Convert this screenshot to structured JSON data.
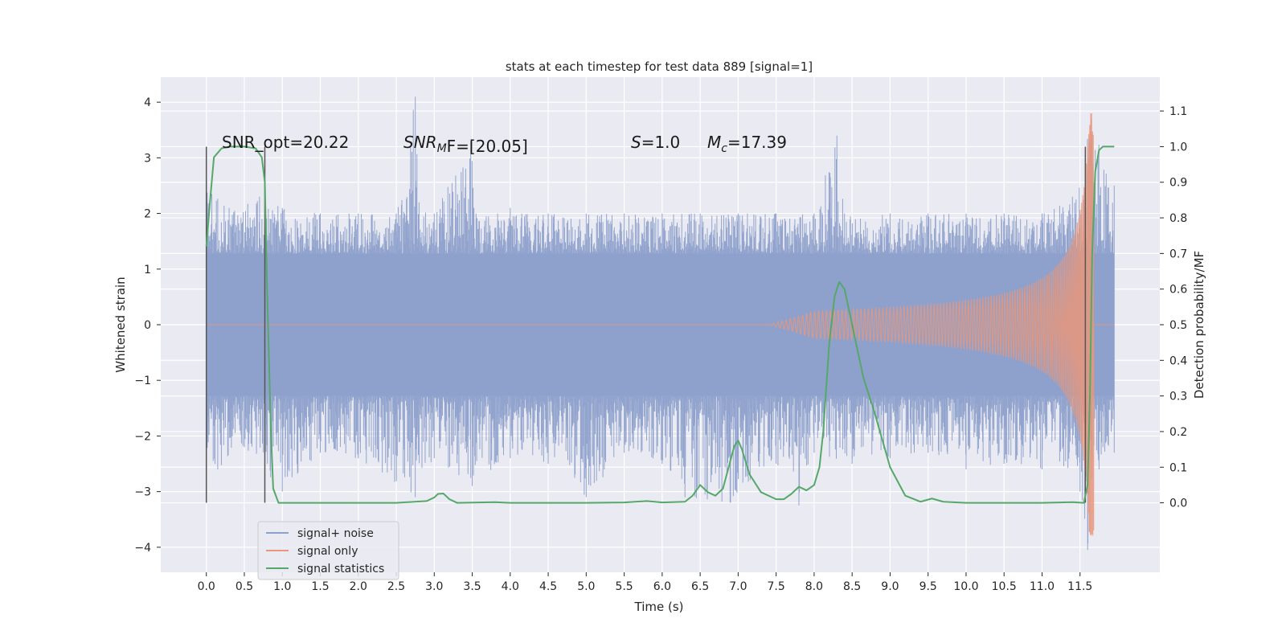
{
  "chart_data": {
    "type": "line",
    "title": "stats at each timestep for test data 889 [signal=1]",
    "xlabel": "Time (s)",
    "ylabel": "Whitened strain",
    "y2label": "Detection probability/MF",
    "xlim": [
      -0.6,
      12.55
    ],
    "ylim": [
      -4.45,
      4.45
    ],
    "y2lim": [
      -0.195,
      1.195
    ],
    "x_ticks": [
      "0.0",
      "0.5",
      "1.0",
      "1.5",
      "2.0",
      "2.5",
      "3.0",
      "3.5",
      "4.0",
      "4.5",
      "5.0",
      "5.5",
      "6.0",
      "6.5",
      "7.0",
      "7.5",
      "8.0",
      "8.5",
      "9.0",
      "9.5",
      "10.0",
      "10.5",
      "11.0",
      "11.5"
    ],
    "y_ticks": [
      "4",
      "3",
      "2",
      "1",
      "0",
      "−1",
      "−2",
      "−3",
      "−4"
    ],
    "y2_ticks": [
      "1.1",
      "1.0",
      "0.9",
      "0.8",
      "0.7",
      "0.6",
      "0.5",
      "0.4",
      "0.3",
      "0.2",
      "0.1",
      "0.0"
    ],
    "grid": true,
    "legend_position": "lower-left",
    "annotations": {
      "snr_opt": "SNR_opt=20.22",
      "snr_mf_base": "SNR",
      "snr_mf_sub": "M",
      "snr_mf_rest": "F=[20.05]",
      "s_sym": "S",
      "s_val": "=1.0",
      "mc_sym": "M",
      "mc_sub": "c",
      "mc_val": "=17.39"
    },
    "vertical_lines": [
      0.0,
      0.77,
      11.57
    ],
    "series": [
      {
        "name": "signal+ noise",
        "color": "#8da0cb",
        "envelope": [
          [
            0.0,
            2.5
          ],
          [
            0.3,
            2.1
          ],
          [
            0.7,
            2.3
          ],
          [
            1.0,
            2.1
          ],
          [
            1.5,
            2.0
          ],
          [
            2.0,
            2.0
          ],
          [
            2.5,
            2.0
          ],
          [
            2.75,
            4.1
          ],
          [
            2.8,
            2.2
          ],
          [
            3.0,
            2.0
          ],
          [
            3.48,
            3.3
          ],
          [
            3.55,
            2.0
          ],
          [
            4.0,
            2.1
          ],
          [
            4.5,
            2.0
          ],
          [
            5.0,
            2.0
          ],
          [
            5.5,
            2.0
          ],
          [
            6.0,
            2.0
          ],
          [
            6.5,
            2.0
          ],
          [
            7.0,
            2.0
          ],
          [
            7.5,
            2.0
          ],
          [
            8.0,
            2.0
          ],
          [
            8.3,
            3.4
          ],
          [
            8.4,
            2.0
          ],
          [
            9.0,
            2.0
          ],
          [
            9.5,
            2.0
          ],
          [
            10.0,
            2.0
          ],
          [
            10.5,
            2.0
          ],
          [
            11.0,
            2.0
          ],
          [
            11.4,
            2.3
          ],
          [
            11.65,
            3.7
          ],
          [
            11.95,
            2.5
          ]
        ],
        "lower_envelope": [
          [
            0.0,
            -2.3
          ],
          [
            0.15,
            -2.6
          ],
          [
            0.5,
            -2.2
          ],
          [
            1.0,
            -3.0
          ],
          [
            1.5,
            -2.3
          ],
          [
            2.0,
            -2.4
          ],
          [
            2.75,
            -3.1
          ],
          [
            3.0,
            -2.4
          ],
          [
            3.5,
            -2.9
          ],
          [
            4.0,
            -2.4
          ],
          [
            4.5,
            -2.5
          ],
          [
            5.0,
            -3.1
          ],
          [
            5.5,
            -2.3
          ],
          [
            6.0,
            -2.5
          ],
          [
            6.3,
            -3.1
          ],
          [
            6.9,
            -3.2
          ],
          [
            7.5,
            -2.5
          ],
          [
            7.8,
            -3.25
          ],
          [
            8.0,
            -2.3
          ],
          [
            8.5,
            -2.5
          ],
          [
            9.0,
            -2.4
          ],
          [
            9.5,
            -2.3
          ],
          [
            10.0,
            -2.6
          ],
          [
            10.5,
            -2.5
          ],
          [
            11.0,
            -2.6
          ],
          [
            11.5,
            -3.0
          ],
          [
            11.6,
            -4.05
          ],
          [
            11.75,
            -2.6
          ],
          [
            11.95,
            -2.3
          ]
        ],
        "core_band": 1.28
      },
      {
        "name": "signal only",
        "color": "#e9967a",
        "chirp_start": 7.4,
        "chirp_end": 11.68,
        "peak_amplitude": 3.8
      },
      {
        "name": "signal statistics",
        "color": "#55a868",
        "axis": "right",
        "points": [
          [
            0.0,
            0.72
          ],
          [
            0.05,
            0.85
          ],
          [
            0.1,
            0.97
          ],
          [
            0.2,
            0.995
          ],
          [
            0.3,
            1.0
          ],
          [
            0.5,
            1.0
          ],
          [
            0.65,
            0.995
          ],
          [
            0.73,
            0.97
          ],
          [
            0.77,
            0.9
          ],
          [
            0.8,
            0.6
          ],
          [
            0.85,
            0.2
          ],
          [
            0.88,
            0.04
          ],
          [
            0.95,
            0.0
          ],
          [
            1.5,
            0.0
          ],
          [
            2.5,
            0.0
          ],
          [
            2.9,
            0.005
          ],
          [
            3.0,
            0.015
          ],
          [
            3.05,
            0.025
          ],
          [
            3.12,
            0.026
          ],
          [
            3.2,
            0.01
          ],
          [
            3.3,
            0.0
          ],
          [
            3.8,
            0.002
          ],
          [
            4.0,
            0.0
          ],
          [
            5.0,
            0.0
          ],
          [
            5.5,
            0.001
          ],
          [
            5.8,
            0.005
          ],
          [
            6.0,
            0.001
          ],
          [
            6.3,
            0.003
          ],
          [
            6.4,
            0.02
          ],
          [
            6.5,
            0.05
          ],
          [
            6.6,
            0.03
          ],
          [
            6.7,
            0.02
          ],
          [
            6.8,
            0.04
          ],
          [
            6.9,
            0.12
          ],
          [
            6.95,
            0.16
          ],
          [
            7.0,
            0.175
          ],
          [
            7.05,
            0.15
          ],
          [
            7.15,
            0.08
          ],
          [
            7.3,
            0.03
          ],
          [
            7.5,
            0.01
          ],
          [
            7.6,
            0.01
          ],
          [
            7.7,
            0.025
          ],
          [
            7.8,
            0.045
          ],
          [
            7.9,
            0.035
          ],
          [
            8.0,
            0.05
          ],
          [
            8.07,
            0.1
          ],
          [
            8.12,
            0.2
          ],
          [
            8.2,
            0.45
          ],
          [
            8.27,
            0.58
          ],
          [
            8.33,
            0.62
          ],
          [
            8.4,
            0.6
          ],
          [
            8.5,
            0.5
          ],
          [
            8.65,
            0.35
          ],
          [
            8.8,
            0.25
          ],
          [
            9.0,
            0.1
          ],
          [
            9.2,
            0.02
          ],
          [
            9.4,
            0.003
          ],
          [
            9.55,
            0.012
          ],
          [
            9.7,
            0.003
          ],
          [
            10.0,
            0.0
          ],
          [
            11.0,
            0.0
          ],
          [
            11.4,
            0.002
          ],
          [
            11.55,
            0.0
          ],
          [
            11.6,
            0.05
          ],
          [
            11.63,
            0.3
          ],
          [
            11.66,
            0.7
          ],
          [
            11.7,
            0.93
          ],
          [
            11.75,
            0.99
          ],
          [
            11.8,
            1.0
          ],
          [
            11.95,
            1.0
          ]
        ]
      }
    ]
  }
}
